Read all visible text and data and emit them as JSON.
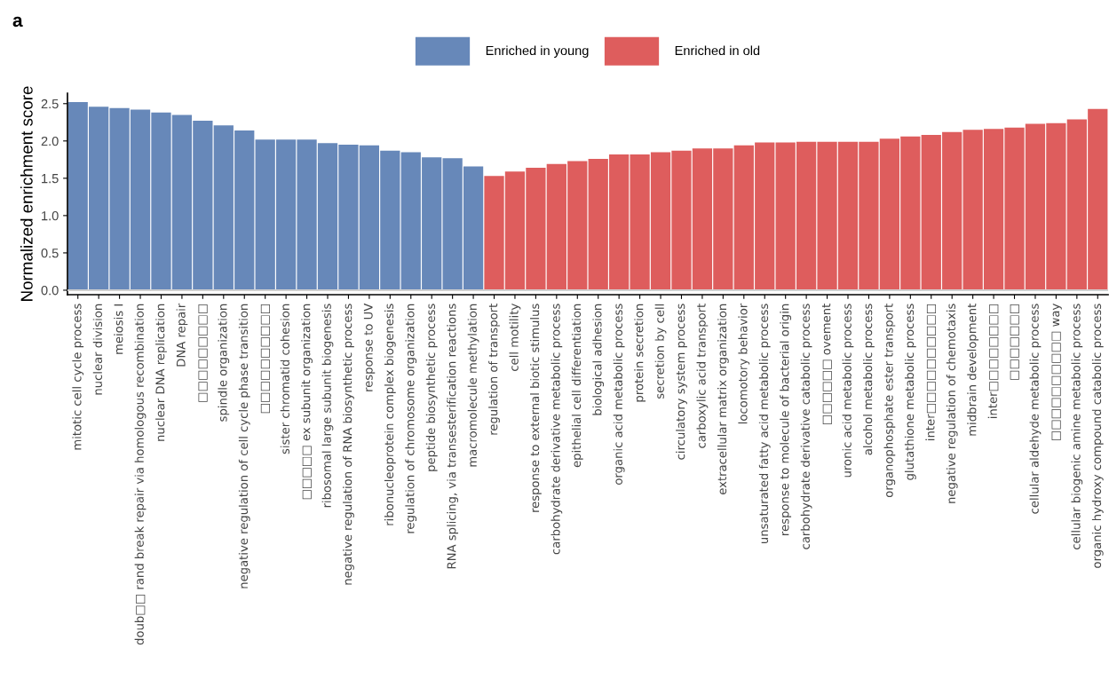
{
  "chart_data": {
    "type": "bar",
    "annotations": [
      "a"
    ],
    "ylabel": "Normalized enrichment score",
    "categories": [
      "mitotic cell cycle process",
      "nuclear division",
      "meiosis I",
      "doub□□ rand break repair via homologous recombination",
      "nuclear DNA replication",
      "DNA repair",
      "□□□□□□□□□",
      "spindle organization",
      "negative regulation of cell cycle phase transition",
      "□□□□□□□□□□",
      "sister chromatid cohesion",
      "□□□□□ ex subunit organization",
      "ribosomal large subunit biogenesis",
      "negative regulation of RNA biosynthetic process",
      "response to UV",
      "ribonucleoprotein complex biogenesis",
      "regulation of chromosome organization",
      "peptide biosynthetic process",
      "RNA splicing, via transesterification reactions",
      "macromolecule methylation",
      "regulation of transport",
      "cell motility",
      "response to external biotic stimulus",
      "carbohydrate derivative metabolic process",
      "epithelial cell differentiation",
      "biological adhesion",
      "organic acid metabolic process",
      "protein secretion",
      "secretion by cell",
      "circulatory system process",
      "carboxylic acid transport",
      "extracellular matrix organization",
      "locomotory behavior",
      "unsaturated fatty acid metabolic process",
      "response to molecule of bacterial origin",
      "carbohydrate derivative catabolic process",
      "□□□□□□ ovement",
      "uronic acid metabolic process",
      "alcohol metabolic process",
      "organophosphate ester transport",
      "glutathione metabolic process",
      "inter□□□□□□□□□□",
      "negative regulation of chemotaxis",
      "midbrain development",
      "inter□□□□□□□□",
      "□□□□□□□",
      "cellular aldehyde metabolic process",
      "□□□□□□□□□□ way",
      "cellular biogenic amine metabolic process",
      "organic hydroxy compound catabolic process"
    ],
    "series": [
      {
        "name": "Enriched in young",
        "color": "#6788b9",
        "values": [
          2.52,
          2.46,
          2.44,
          2.42,
          2.38,
          2.35,
          2.27,
          2.21,
          2.14,
          2.02,
          2.02,
          2.02,
          1.97,
          1.95,
          1.94,
          1.87,
          1.85,
          1.78,
          1.77,
          1.66,
          null,
          null,
          null,
          null,
          null,
          null,
          null,
          null,
          null,
          null,
          null,
          null,
          null,
          null,
          null,
          null,
          null,
          null,
          null,
          null,
          null,
          null,
          null,
          null,
          null,
          null,
          null,
          null,
          null,
          null
        ]
      },
      {
        "name": "Enriched in old",
        "color": "#de5d5d",
        "values": [
          null,
          null,
          null,
          null,
          null,
          null,
          null,
          null,
          null,
          null,
          null,
          null,
          null,
          null,
          null,
          null,
          null,
          null,
          null,
          null,
          1.53,
          1.59,
          1.64,
          1.69,
          1.73,
          1.76,
          1.82,
          1.82,
          1.85,
          1.87,
          1.9,
          1.9,
          1.94,
          1.98,
          1.98,
          1.99,
          1.99,
          1.99,
          1.99,
          2.03,
          2.06,
          2.08,
          2.12,
          2.15,
          2.16,
          2.18,
          2.23,
          2.24,
          2.29,
          2.43
        ]
      }
    ],
    "ylim": [
      -0.06,
      2.64
    ],
    "yticks": [
      {
        "value": 0,
        "label": "0.0"
      },
      {
        "value": 0.5,
        "label": "0.5"
      },
      {
        "value": 1,
        "label": "1.0"
      },
      {
        "value": 1.5,
        "label": "1.5"
      },
      {
        "value": 2,
        "label": "2.0"
      },
      {
        "value": 2.5,
        "label": "2.5"
      }
    ],
    "ref_lines": [
      {
        "axis": "y",
        "value": 0,
        "color": "#d0d0d0"
      }
    ],
    "legend": "top",
    "grid": false
  }
}
